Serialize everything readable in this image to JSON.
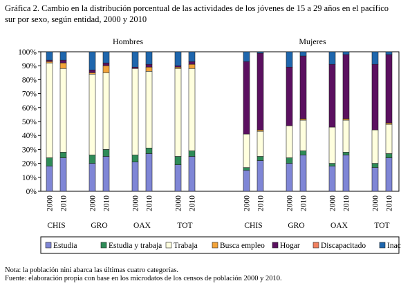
{
  "title": "Gráfica 2. Cambio en la distribución porcentual de las actividades de los jóvenes de 15 a 29 años en el pacífico sur por sexo, según entidad, 2000 y 2010",
  "notes": {
    "nota": "Nota: la población nini abarca las últimas cuatro categorías.",
    "fuente": "Fuente: elaboración propia con base en los microdatos de los censos de población 2000 y 2010."
  },
  "chart_data": {
    "type": "bar",
    "stacked": true,
    "percent": true,
    "ylim": [
      0,
      100
    ],
    "yticks": [
      "0%",
      "10%",
      "20%",
      "30%",
      "40%",
      "50%",
      "60%",
      "70%",
      "80%",
      "90%",
      "100%"
    ],
    "legend_position": "bottom",
    "grid": false,
    "panels": [
      "Hombres",
      "Mujeres"
    ],
    "entities": [
      "CHIS",
      "GRO",
      "OAX",
      "TOT"
    ],
    "years": [
      "2000",
      "2010"
    ],
    "categories": [
      "Estudia",
      "Estudia y trabaja",
      "Trabaja",
      "Busca empleo",
      "Hogar",
      "Discapacitado",
      "Inactivo"
    ],
    "colors": [
      "#7f86d6",
      "#2e8b57",
      "#ffffde",
      "#f2a33a",
      "#5b1060",
      "#f08060",
      "#1e66ad"
    ],
    "bars": [
      {
        "panel": "Hombres",
        "entity": "CHIS",
        "year": "2000",
        "values": [
          18,
          6,
          68,
          1,
          1,
          0,
          6
        ]
      },
      {
        "panel": "Hombres",
        "entity": "CHIS",
        "year": "2010",
        "values": [
          24,
          4,
          60,
          4,
          2,
          0,
          6
        ]
      },
      {
        "panel": "Hombres",
        "entity": "GRO",
        "year": "2000",
        "values": [
          20,
          6,
          58,
          1,
          2,
          0,
          13
        ]
      },
      {
        "panel": "Hombres",
        "entity": "GRO",
        "year": "2010",
        "values": [
          25,
          5,
          55,
          5,
          2,
          0,
          8
        ]
      },
      {
        "panel": "Hombres",
        "entity": "OAX",
        "year": "2000",
        "values": [
          21,
          5,
          62,
          0,
          1,
          0,
          11
        ]
      },
      {
        "panel": "Hombres",
        "entity": "OAX",
        "year": "2010",
        "values": [
          27,
          4,
          55,
          3,
          2,
          0,
          9
        ]
      },
      {
        "panel": "Hombres",
        "entity": "TOT",
        "year": "2000",
        "values": [
          19,
          6,
          63,
          1,
          1,
          0,
          10
        ]
      },
      {
        "panel": "Hombres",
        "entity": "TOT",
        "year": "2010",
        "values": [
          25,
          4,
          59,
          3,
          2,
          0,
          7
        ]
      },
      {
        "panel": "Mujeres",
        "entity": "CHIS",
        "year": "2000",
        "values": [
          15,
          2,
          24,
          0,
          52,
          0,
          7
        ]
      },
      {
        "panel": "Mujeres",
        "entity": "CHIS",
        "year": "2010",
        "values": [
          22,
          3,
          18,
          1,
          55,
          0,
          1
        ]
      },
      {
        "panel": "Mujeres",
        "entity": "GRO",
        "year": "2000",
        "values": [
          20,
          4,
          23,
          0,
          42,
          0,
          11
        ]
      },
      {
        "panel": "Mujeres",
        "entity": "GRO",
        "year": "2010",
        "values": [
          26,
          3,
          22,
          1,
          45,
          0,
          3
        ]
      },
      {
        "panel": "Mujeres",
        "entity": "OAX",
        "year": "2000",
        "values": [
          18,
          2,
          26,
          0,
          45,
          0,
          9
        ]
      },
      {
        "panel": "Mujeres",
        "entity": "OAX",
        "year": "2010",
        "values": [
          26,
          2,
          23,
          1,
          46,
          0,
          2
        ]
      },
      {
        "panel": "Mujeres",
        "entity": "TOT",
        "year": "2000",
        "values": [
          17,
          3,
          24,
          0,
          47,
          0,
          9
        ]
      },
      {
        "panel": "Mujeres",
        "entity": "TOT",
        "year": "2010",
        "values": [
          24,
          3,
          21,
          1,
          49,
          0,
          2
        ]
      }
    ]
  }
}
